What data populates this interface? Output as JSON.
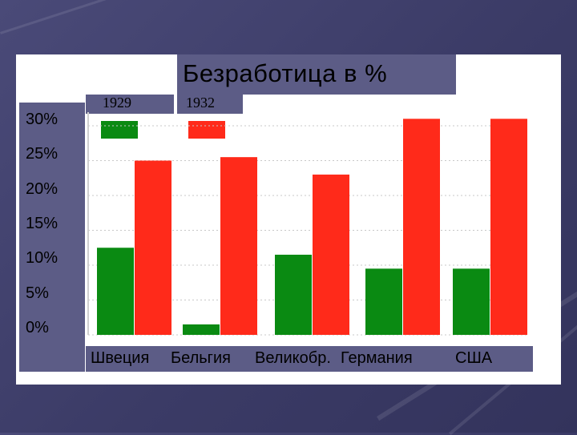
{
  "chart_data": {
    "type": "bar",
    "title": "Безработица в %",
    "categories": [
      "Швеция",
      "Бельгия",
      "Великобр.",
      "Германия",
      "США"
    ],
    "series": [
      {
        "name": "1929",
        "color": "#0a8a12",
        "values": [
          12.5,
          1.5,
          11.5,
          9.5,
          9.5
        ]
      },
      {
        "name": "1932",
        "color": "#ff2a1a",
        "values": [
          25,
          25.5,
          23,
          31,
          31
        ]
      }
    ],
    "yticks": [
      "30%",
      "25%",
      "20%",
      "15%",
      "10%",
      "5%",
      "0%"
    ],
    "ylim": [
      0,
      31
    ],
    "grid": true,
    "legend_position": "top-left"
  }
}
